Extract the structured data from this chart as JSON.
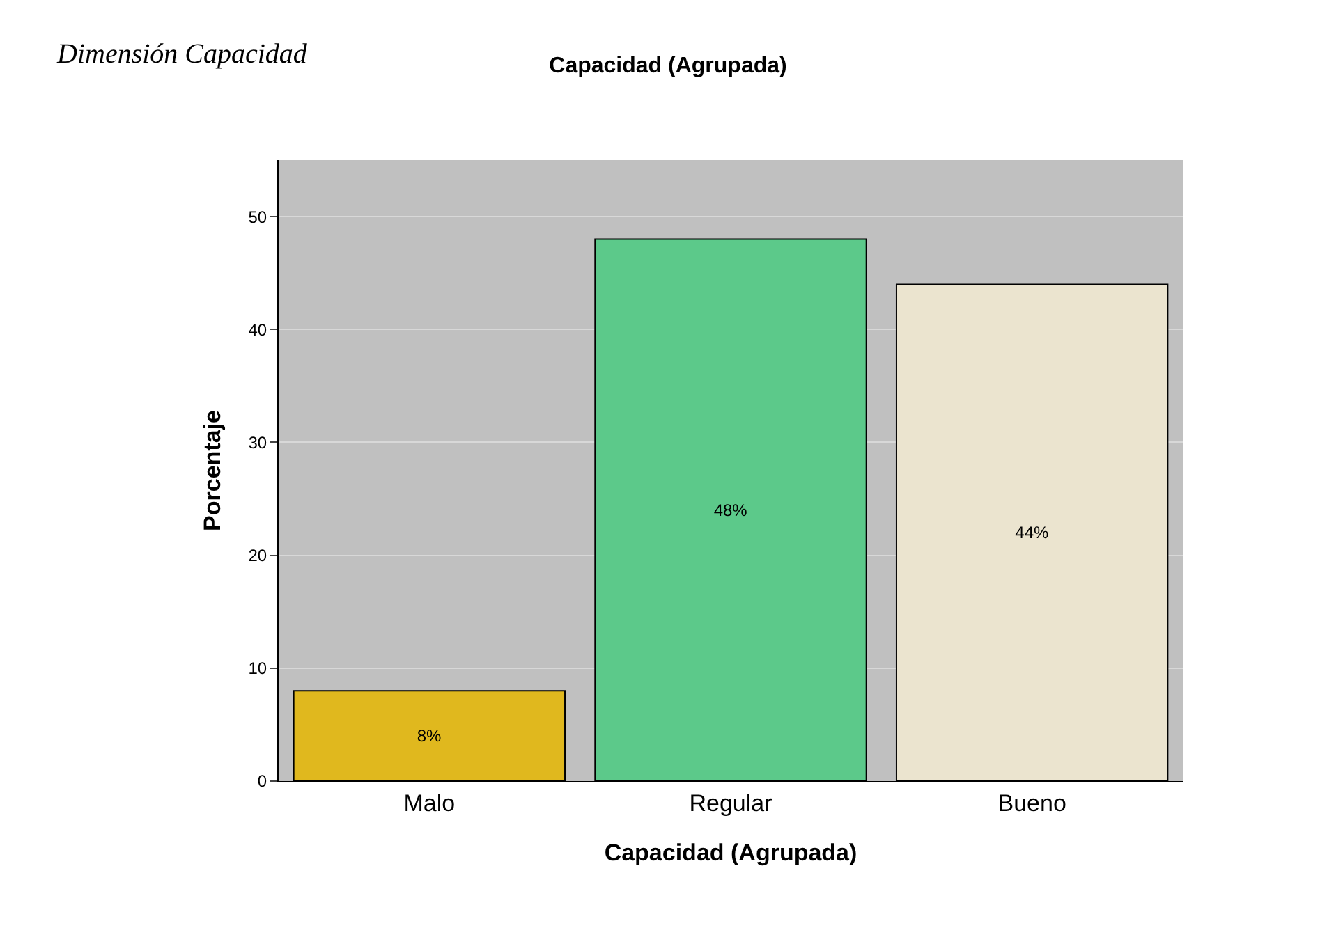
{
  "chart_data": {
    "type": "bar",
    "title": "Capacidad (Agrupada)",
    "xlabel": "Capacidad (Agrupada)",
    "ylabel": "Porcentaje",
    "annotations": [
      "Dimensión Capacidad"
    ],
    "categories": [
      "Malo",
      "Regular",
      "Bueno"
    ],
    "values": [
      8,
      48,
      44
    ],
    "colors": [
      "#e0b81e",
      "#5cc98a",
      "#ebe4cf"
    ],
    "value_labels": [
      "8%",
      "48%",
      "44%"
    ],
    "ylim": [
      0,
      55
    ],
    "yticks": [
      0,
      10,
      20,
      30,
      40,
      50
    ],
    "grid": "y"
  }
}
